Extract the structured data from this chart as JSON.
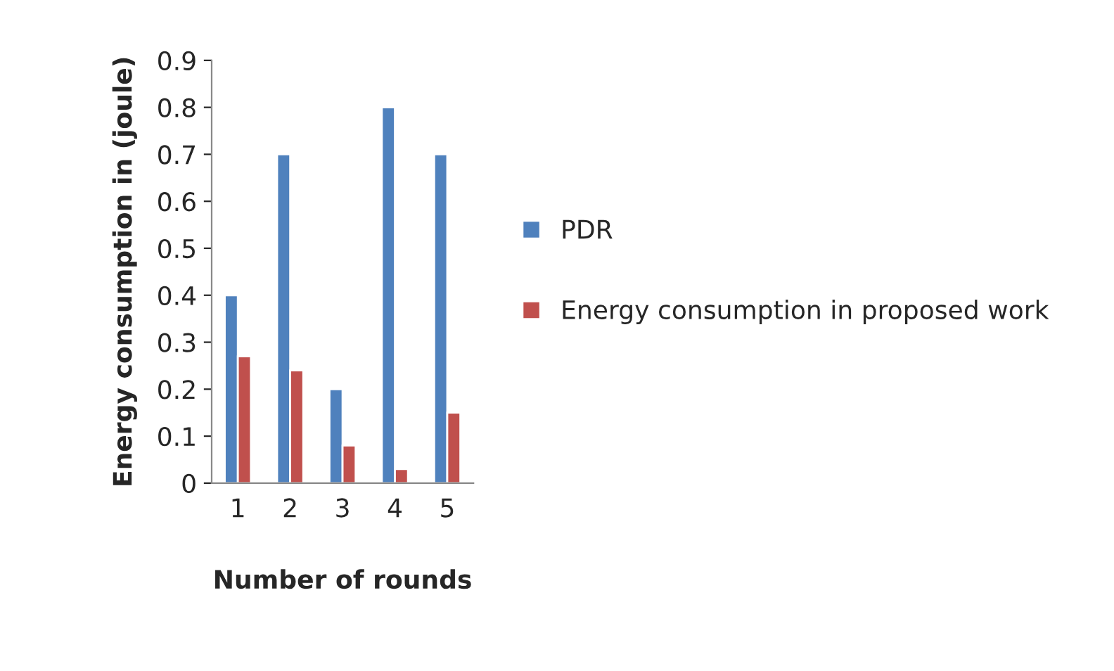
{
  "chart_data": {
    "type": "bar",
    "xlabel": "Number of rounds",
    "ylabel": "Energy consumption in (joule)",
    "categories": [
      "1",
      "2",
      "3",
      "4",
      "5"
    ],
    "series": [
      {
        "name": "PDR",
        "color": "#4f81bd",
        "values": [
          0.4,
          0.7,
          0.2,
          0.8,
          0.7
        ]
      },
      {
        "name": "Energy consumption in proposed work",
        "color": "#c0504d",
        "values": [
          0.27,
          0.24,
          0.08,
          0.03,
          0.15
        ]
      }
    ],
    "ylim": [
      0,
      0.9
    ],
    "yticks": [
      0,
      0.1,
      0.2,
      0.3,
      0.4,
      0.5,
      0.6,
      0.7,
      0.8,
      0.9
    ],
    "grid": false,
    "legend": "right"
  }
}
